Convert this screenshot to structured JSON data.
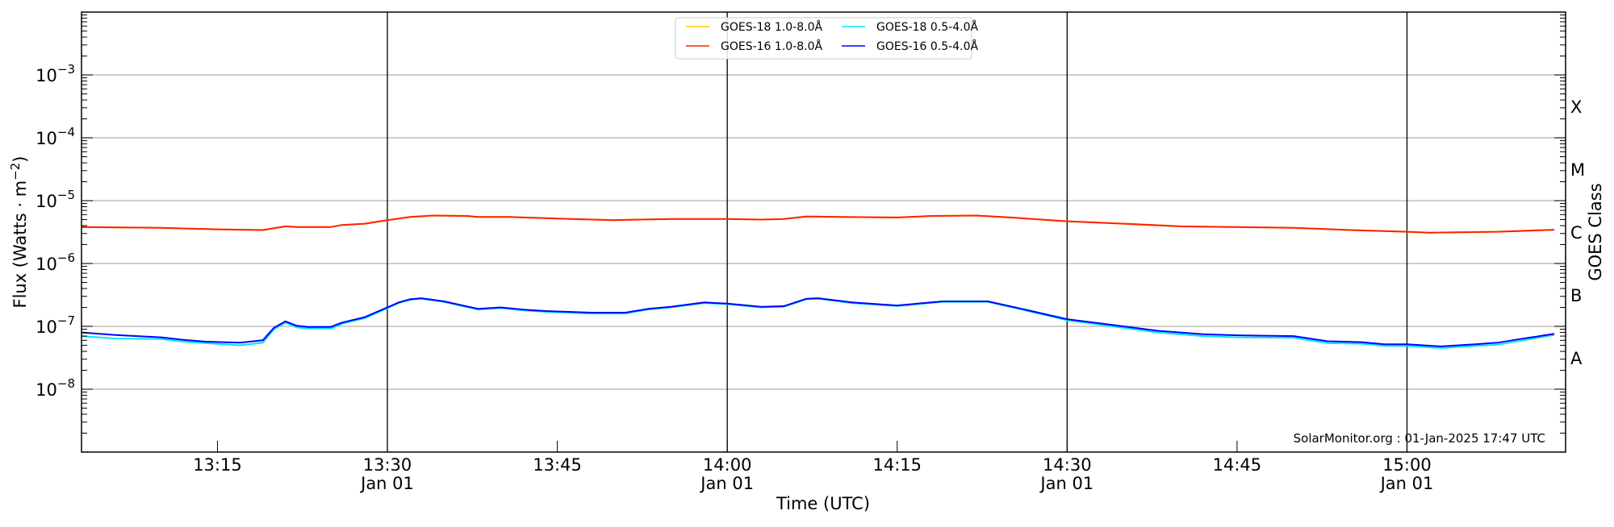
{
  "chart_data": {
    "type": "line",
    "title": "",
    "xlabel": "Time (UTC)",
    "ylabel": "Flux (Watts · m",
    "ylabel_exp": "−2",
    "ylabel_close": ")",
    "right_ylabel": "GOES Class",
    "y_scale": "log",
    "ylim": [
      1e-09,
      0.01
    ],
    "xlim": [
      "13:03",
      "15:14"
    ],
    "grid": "horizontal at each decade",
    "x_ticks": [
      {
        "time": "13:15",
        "label": "13:15",
        "sub": ""
      },
      {
        "time": "13:30",
        "label": "13:30",
        "sub": "Jan 01"
      },
      {
        "time": "13:45",
        "label": "13:45",
        "sub": ""
      },
      {
        "time": "14:00",
        "label": "14:00",
        "sub": "Jan 01"
      },
      {
        "time": "14:15",
        "label": "14:15",
        "sub": ""
      },
      {
        "time": "14:30",
        "label": "14:30",
        "sub": "Jan 01"
      },
      {
        "time": "14:45",
        "label": "14:45",
        "sub": ""
      },
      {
        "time": "15:00",
        "label": "15:00",
        "sub": "Jan 01"
      }
    ],
    "vertical_lines": [
      "13:30",
      "14:00",
      "14:30",
      "15:00"
    ],
    "y_ticks": [
      {
        "value": 1e-08,
        "base": "10",
        "exp": "−8"
      },
      {
        "value": 1e-07,
        "base": "10",
        "exp": "−7"
      },
      {
        "value": 1e-06,
        "base": "10",
        "exp": "−6"
      },
      {
        "value": 1e-05,
        "base": "10",
        "exp": "−5"
      },
      {
        "value": 0.0001,
        "base": "10",
        "exp": "−4"
      },
      {
        "value": 0.001,
        "base": "10",
        "exp": "−3"
      }
    ],
    "class_labels": [
      {
        "label": "A",
        "log_value": -7.5
      },
      {
        "label": "B",
        "log_value": -6.5
      },
      {
        "label": "C",
        "log_value": -5.5
      },
      {
        "label": "M",
        "log_value": -4.5
      },
      {
        "label": "X",
        "log_value": -3.5
      }
    ],
    "legend_placement": "top-center",
    "series": [
      {
        "name": "GOES-18 1.0-8.0Å",
        "color": "#ffcc00",
        "x": [
          "13:03",
          "13:10",
          "13:15",
          "13:19",
          "13:21",
          "13:22",
          "13:25",
          "13:26",
          "13:28",
          "13:30",
          "13:32",
          "13:34",
          "13:37",
          "13:38",
          "13:41",
          "13:45",
          "13:50",
          "13:55",
          "14:00",
          "14:03",
          "14:05",
          "14:07",
          "14:10",
          "14:15",
          "14:18",
          "14:22",
          "14:25",
          "14:30",
          "14:35",
          "14:40",
          "14:45",
          "14:50",
          "14:55",
          "15:00",
          "15:02",
          "15:08",
          "15:13"
        ],
        "y": [
          3.8e-06,
          3.7e-06,
          3.5e-06,
          3.4e-06,
          3.9e-06,
          3.8e-06,
          3.8e-06,
          4.1e-06,
          4.3e-06,
          4.9e-06,
          5.5e-06,
          5.8e-06,
          5.7e-06,
          5.5e-06,
          5.5e-06,
          5.2e-06,
          4.9e-06,
          5.1e-06,
          5.1e-06,
          5e-06,
          5.1e-06,
          5.6e-06,
          5.5e-06,
          5.4e-06,
          5.7e-06,
          5.8e-06,
          5.4e-06,
          4.7e-06,
          4.3e-06,
          3.9e-06,
          3.8e-06,
          3.7e-06,
          3.4e-06,
          3.2e-06,
          3.1e-06,
          3.2e-06,
          3.45e-06
        ]
      },
      {
        "name": "GOES-16 1.0-8.0Å",
        "color": "#ff2000",
        "x": [
          "13:03",
          "13:10",
          "13:15",
          "13:19",
          "13:21",
          "13:22",
          "13:25",
          "13:26",
          "13:28",
          "13:30",
          "13:32",
          "13:34",
          "13:37",
          "13:38",
          "13:41",
          "13:45",
          "13:50",
          "13:55",
          "14:00",
          "14:03",
          "14:05",
          "14:07",
          "14:10",
          "14:15",
          "14:18",
          "14:22",
          "14:25",
          "14:30",
          "14:35",
          "14:40",
          "14:45",
          "14:50",
          "14:55",
          "15:00",
          "15:02",
          "15:08",
          "15:13"
        ],
        "y": [
          3.8e-06,
          3.7e-06,
          3.5e-06,
          3.4e-06,
          3.9e-06,
          3.8e-06,
          3.8e-06,
          4.1e-06,
          4.3e-06,
          4.9e-06,
          5.5e-06,
          5.8e-06,
          5.7e-06,
          5.5e-06,
          5.5e-06,
          5.2e-06,
          4.9e-06,
          5.1e-06,
          5.1e-06,
          5e-06,
          5.1e-06,
          5.6e-06,
          5.5e-06,
          5.4e-06,
          5.7e-06,
          5.8e-06,
          5.4e-06,
          4.7e-06,
          4.3e-06,
          3.9e-06,
          3.8e-06,
          3.7e-06,
          3.4e-06,
          3.2e-06,
          3.1e-06,
          3.2e-06,
          3.45e-06
        ]
      },
      {
        "name": "GOES-18 0.5-4.0Å",
        "color": "#00e5ff",
        "x": [
          "13:03",
          "13:06",
          "13:10",
          "13:12",
          "13:14",
          "13:17",
          "13:19",
          "13:20",
          "13:21",
          "13:22",
          "13:23",
          "13:25",
          "13:26",
          "13:28",
          "13:30",
          "13:31",
          "13:32",
          "13:33",
          "13:35",
          "13:38",
          "13:40",
          "13:42",
          "13:44",
          "13:48",
          "13:51",
          "13:53",
          "13:55",
          "13:58",
          "14:00",
          "14:03",
          "14:05",
          "14:07",
          "14:08",
          "14:11",
          "14:15",
          "14:19",
          "14:23",
          "14:26",
          "14:30",
          "14:34",
          "14:38",
          "14:42",
          "14:45",
          "14:50",
          "14:53",
          "14:56",
          "14:58",
          "15:00",
          "15:03",
          "15:06",
          "15:08",
          "15:10",
          "15:13"
        ],
        "y": [
          7e-08,
          6.4e-08,
          6.3e-08,
          5.7e-08,
          5.4e-08,
          5e-08,
          5.5e-08,
          9e-08,
          1.15e-07,
          9.6e-08,
          9.2e-08,
          9.2e-08,
          1.1e-07,
          1.35e-07,
          1.95e-07,
          2.35e-07,
          2.65e-07,
          2.75e-07,
          2.45e-07,
          1.85e-07,
          1.95e-07,
          1.8e-07,
          1.7e-07,
          1.6e-07,
          1.6e-07,
          1.85e-07,
          2e-07,
          2.35e-07,
          2.25e-07,
          2e-07,
          2.05e-07,
          2.7e-07,
          2.75e-07,
          2.35e-07,
          2.1e-07,
          2.45e-07,
          2.45e-07,
          1.85e-07,
          1.25e-07,
          1e-07,
          8e-08,
          7e-08,
          6.7e-08,
          6.6e-08,
          5.4e-08,
          5.3e-08,
          4.9e-08,
          4.9e-08,
          4.5e-08,
          4.9e-08,
          5.1e-08,
          5.9e-08,
          7.3e-08
        ]
      },
      {
        "name": "GOES-16 0.5-4.0Å",
        "color": "#0000ff",
        "x": [
          "13:03",
          "13:06",
          "13:10",
          "13:12",
          "13:14",
          "13:17",
          "13:19",
          "13:20",
          "13:21",
          "13:22",
          "13:23",
          "13:25",
          "13:26",
          "13:28",
          "13:30",
          "13:31",
          "13:32",
          "13:33",
          "13:35",
          "13:38",
          "13:40",
          "13:42",
          "13:44",
          "13:48",
          "13:51",
          "13:53",
          "13:55",
          "13:58",
          "14:00",
          "14:03",
          "14:05",
          "14:07",
          "14:08",
          "14:11",
          "14:15",
          "14:19",
          "14:23",
          "14:26",
          "14:30",
          "14:34",
          "14:38",
          "14:42",
          "14:45",
          "14:50",
          "14:53",
          "14:56",
          "14:58",
          "15:00",
          "15:03",
          "15:06",
          "15:08",
          "15:10",
          "15:13"
        ],
        "y": [
          8e-08,
          7.3e-08,
          6.7e-08,
          6.1e-08,
          5.7e-08,
          5.5e-08,
          6e-08,
          9.5e-08,
          1.2e-07,
          1.02e-07,
          9.8e-08,
          9.8e-08,
          1.15e-07,
          1.4e-07,
          2e-07,
          2.4e-07,
          2.7e-07,
          2.8e-07,
          2.5e-07,
          1.9e-07,
          2e-07,
          1.85e-07,
          1.75e-07,
          1.65e-07,
          1.65e-07,
          1.9e-07,
          2.05e-07,
          2.4e-07,
          2.3e-07,
          2.05e-07,
          2.1e-07,
          2.75e-07,
          2.8e-07,
          2.4e-07,
          2.15e-07,
          2.5e-07,
          2.5e-07,
          1.9e-07,
          1.3e-07,
          1.05e-07,
          8.5e-08,
          7.5e-08,
          7.2e-08,
          7e-08,
          5.8e-08,
          5.6e-08,
          5.2e-08,
          5.2e-08,
          4.8e-08,
          5.2e-08,
          5.5e-08,
          6.3e-08,
          7.6e-08
        ]
      }
    ],
    "annotation": "SolarMonitor.org : 01-Jan-2025 17:47 UTC"
  }
}
